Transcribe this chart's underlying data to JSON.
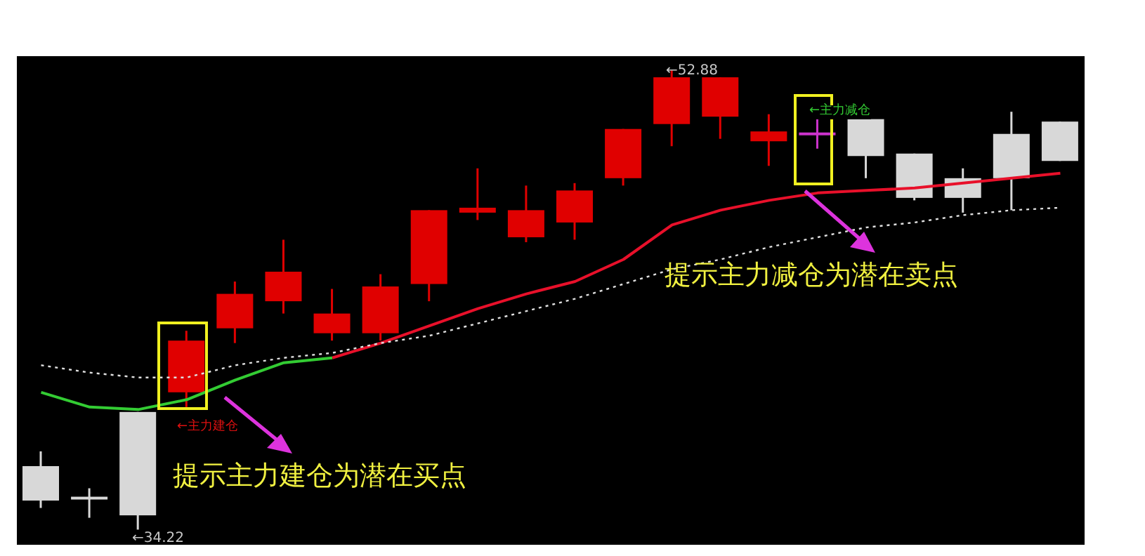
{
  "chart_data": {
    "type": "candlestick",
    "categories": [
      null,
      null,
      null,
      null,
      null,
      null,
      null,
      null,
      null,
      null,
      null,
      null,
      null,
      null,
      null,
      null,
      null,
      null,
      null,
      null,
      null,
      null
    ],
    "ohlc": [
      [
        36.8,
        37.4,
        35.1,
        35.4
      ],
      [
        35.5,
        35.9,
        34.7,
        35.5
      ],
      [
        39.0,
        39.0,
        34.22,
        34.8
      ],
      [
        39.8,
        42.3,
        39.2,
        41.9
      ],
      [
        42.4,
        44.3,
        41.8,
        43.8
      ],
      [
        43.5,
        46.0,
        43.0,
        44.7
      ],
      [
        42.2,
        44.0,
        41.9,
        43.0
      ],
      [
        42.2,
        44.6,
        41.9,
        44.1
      ],
      [
        44.2,
        47.2,
        43.5,
        47.2
      ],
      [
        47.1,
        48.9,
        46.8,
        47.3
      ],
      [
        46.1,
        48.2,
        45.9,
        47.2
      ],
      [
        46.7,
        48.3,
        46.0,
        48.0
      ],
      [
        48.5,
        50.5,
        48.2,
        50.5
      ],
      [
        50.7,
        52.88,
        49.8,
        52.6
      ],
      [
        51.0,
        52.6,
        50.1,
        52.6
      ],
      [
        50.0,
        51.1,
        49.0,
        50.4
      ],
      [
        50.3,
        50.9,
        49.7,
        50.3
      ],
      [
        50.9,
        50.9,
        48.5,
        49.4
      ],
      [
        49.5,
        49.5,
        47.6,
        47.7
      ],
      [
        48.5,
        48.9,
        47.1,
        47.7
      ],
      [
        50.3,
        51.2,
        47.2,
        48.5
      ],
      [
        50.8,
        50.8,
        49.2,
        49.2
      ]
    ],
    "colors": [
      "#d8d8d8",
      "#d8d8d8",
      "#d8d8d8",
      "#e00000",
      "#e00000",
      "#e00000",
      "#e00000",
      "#e00000",
      "#e00000",
      "#e00000",
      "#e00000",
      "#e00000",
      "#e00000",
      "#e00000",
      "#e00000",
      "#e00000",
      "#cc33cc",
      "#d8d8d8",
      "#d8d8d8",
      "#d8d8d8",
      "#d8d8d8",
      "#d8d8d8"
    ],
    "series": [
      {
        "type": "line",
        "color": "#33cc33",
        "values": [
          39.8,
          39.2,
          39.1,
          39.5,
          40.3,
          41.0,
          41.2,
          null,
          null,
          null,
          null,
          null,
          null,
          null,
          null,
          null,
          null,
          null,
          null,
          null,
          null,
          null
        ]
      },
      {
        "type": "line",
        "color": "#e8102a",
        "values": [
          null,
          null,
          null,
          null,
          null,
          null,
          41.2,
          41.8,
          42.5,
          43.2,
          43.8,
          44.3,
          45.2,
          46.6,
          47.2,
          47.6,
          47.9,
          48.0,
          48.1,
          48.3,
          48.5,
          48.7
        ]
      },
      {
        "type": "line",
        "color": "#e0e0e0",
        "line_style": "dotted",
        "values": [
          40.9,
          40.6,
          40.4,
          40.4,
          40.9,
          41.2,
          41.4,
          41.8,
          42.1,
          42.6,
          43.1,
          43.6,
          44.2,
          44.8,
          45.2,
          45.7,
          46.1,
          46.5,
          46.7,
          47.0,
          47.2,
          47.3
        ]
      }
    ],
    "annotations": [
      "←52.88",
      "←34.22",
      "←主力建仓",
      "←主力减仓",
      "提示主力建仓为潜在买点",
      "提示主力减仓为潜在卖点"
    ],
    "tick_labels": false,
    "grid": false
  }
}
